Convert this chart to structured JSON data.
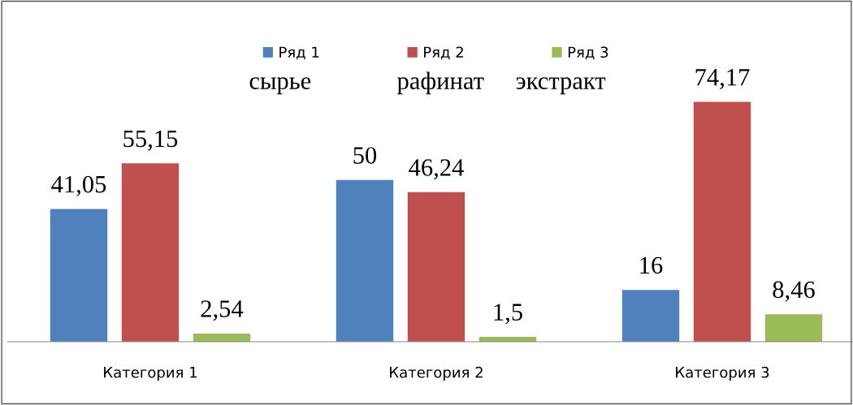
{
  "chart_data": {
    "type": "bar",
    "categories": [
      "Категория 1",
      "Категория 2",
      "Категория 3"
    ],
    "series": [
      {
        "name": "Ряд 1",
        "color": "#4f81bd",
        "values": [
          41.05,
          50,
          16
        ],
        "value_labels": [
          "41,05",
          "50",
          "16"
        ]
      },
      {
        "name": "Ряд 2",
        "color": "#c0504d",
        "values": [
          55.15,
          46.24,
          74.17
        ],
        "value_labels": [
          "55,15",
          "46,24",
          "74,17"
        ]
      },
      {
        "name": "Ряд 3",
        "color": "#9bbb59",
        "values": [
          2.54,
          1.5,
          8.46
        ],
        "value_labels": [
          "2,54",
          "1,5",
          "8,46"
        ]
      }
    ],
    "annotations": [
      "сырье",
      "рафинат",
      "экстракт"
    ],
    "legend": "top",
    "grid": false
  }
}
